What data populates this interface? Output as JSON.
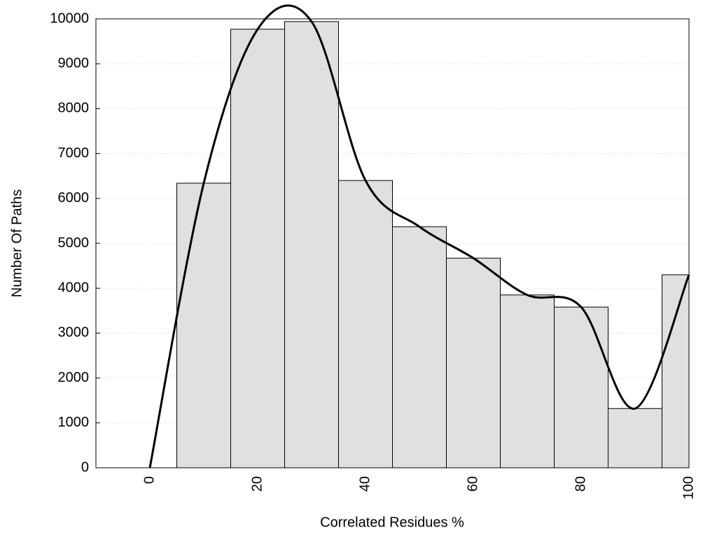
{
  "chart_data": {
    "type": "histogram",
    "xlabel": "Correlated Residues %",
    "ylabel": "Number Of Paths",
    "bins": [
      5,
      15,
      25,
      35,
      45,
      55,
      65,
      75,
      85,
      95,
      100
    ],
    "values": [
      6340,
      9770,
      9940,
      6400,
      5370,
      4670,
      3850,
      3580,
      1320,
      4300
    ],
    "color": "#e0e0e0",
    "line": {
      "type": "line",
      "color": "#000000",
      "x": [
        0,
        10,
        20,
        30,
        40,
        50,
        60,
        70,
        80,
        90,
        100
      ],
      "values": [
        0,
        6340,
        9770,
        9940,
        6400,
        5370,
        4670,
        3850,
        3580,
        1320,
        4300
      ]
    },
    "xlim": [
      -10,
      100
    ],
    "ylim": [
      0,
      10000
    ],
    "xticks": [
      0,
      20,
      40,
      60,
      80,
      100
    ],
    "yticks": [
      0,
      1000,
      2000,
      3000,
      4000,
      5000,
      6000,
      7000,
      8000,
      9000,
      10000
    ],
    "grid": true
  }
}
